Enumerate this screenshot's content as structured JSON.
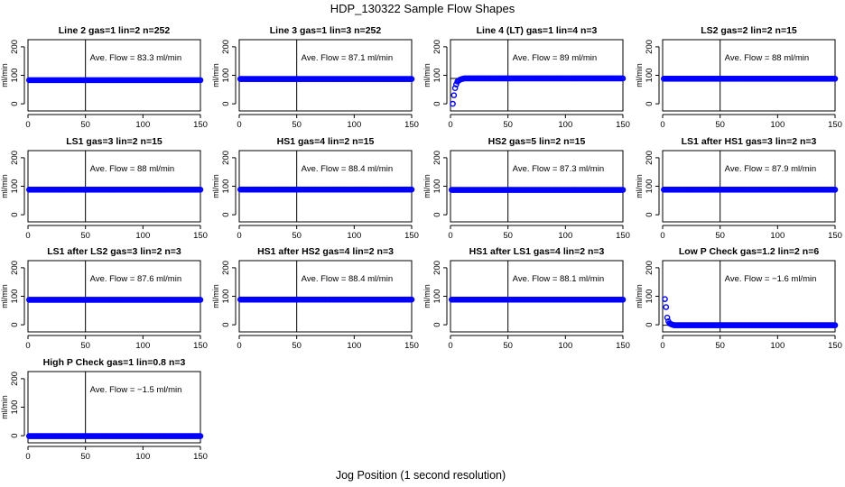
{
  "title": "HDP_130322  Sample Flow Shapes",
  "xlabel": "Jog Position (1 second resolution)",
  "ylabel": "ml/min",
  "colors": {
    "points": "#0000ff",
    "axes": "#000000",
    "background": "#ffffff"
  },
  "chart_data": [
    {
      "type": "scatter",
      "title": "Line 2 gas=1 lin=2 n=252",
      "annotation": "Ave. Flow =  83.3  ml/min",
      "xlim": [
        0,
        150
      ],
      "ylim": [
        -25,
        225
      ],
      "xticks": [
        0,
        50,
        100,
        150
      ],
      "yticks": [
        0,
        100,
        200
      ],
      "hlines": [
        83
      ],
      "vlines": [
        50
      ],
      "points": [
        {
          "x": 1,
          "y": 83
        },
        {
          "x": 150,
          "y": 83
        }
      ]
    },
    {
      "type": "scatter",
      "title": "Line 3 gas=1 lin=3 n=252",
      "annotation": "Ave. Flow =  87.1  ml/min",
      "xlim": [
        0,
        150
      ],
      "ylim": [
        -25,
        225
      ],
      "xticks": [
        0,
        50,
        100,
        150
      ],
      "yticks": [
        0,
        100,
        200
      ],
      "hlines": [
        87
      ],
      "vlines": [
        50
      ],
      "points": [
        {
          "x": 1,
          "y": 87
        },
        {
          "x": 150,
          "y": 87
        }
      ]
    },
    {
      "type": "scatter",
      "title": "Line 4 (LT) gas=1 lin=4 n=3",
      "annotation": "Ave. Flow =  89  ml/min",
      "xlim": [
        0,
        150
      ],
      "ylim": [
        -25,
        225
      ],
      "xticks": [
        0,
        50,
        100,
        150
      ],
      "yticks": [
        0,
        100,
        200
      ],
      "hlines": [
        89
      ],
      "vlines": [
        50
      ],
      "points": [
        {
          "x": 2,
          "y": 0
        },
        {
          "x": 3,
          "y": 30
        },
        {
          "x": 4,
          "y": 55
        },
        {
          "x": 5,
          "y": 68
        },
        {
          "x": 6,
          "y": 78
        },
        {
          "x": 8,
          "y": 84
        },
        {
          "x": 10,
          "y": 87
        },
        {
          "x": 12,
          "y": 89
        },
        {
          "x": 150,
          "y": 89
        }
      ]
    },
    {
      "type": "scatter",
      "title": "LS2 gas=2 lin=2 n=15",
      "annotation": "Ave. Flow =  88  ml/min",
      "xlim": [
        0,
        150
      ],
      "ylim": [
        -25,
        225
      ],
      "xticks": [
        0,
        50,
        100,
        150
      ],
      "yticks": [
        0,
        100,
        200
      ],
      "hlines": [
        88
      ],
      "vlines": [
        50
      ],
      "points": [
        {
          "x": 1,
          "y": 88
        },
        {
          "x": 150,
          "y": 88
        }
      ]
    },
    {
      "type": "scatter",
      "title": "LS1 gas=3 lin=2 n=15",
      "annotation": "Ave. Flow =  88  ml/min",
      "xlim": [
        0,
        150
      ],
      "ylim": [
        -25,
        225
      ],
      "xticks": [
        0,
        50,
        100,
        150
      ],
      "yticks": [
        0,
        100,
        200
      ],
      "hlines": [
        88
      ],
      "vlines": [
        50
      ],
      "points": [
        {
          "x": 1,
          "y": 88
        },
        {
          "x": 150,
          "y": 88
        }
      ]
    },
    {
      "type": "scatter",
      "title": "HS1 gas=4 lin=2 n=15",
      "annotation": "Ave. Flow =  88.4  ml/min",
      "xlim": [
        0,
        150
      ],
      "ylim": [
        -25,
        225
      ],
      "xticks": [
        0,
        50,
        100,
        150
      ],
      "yticks": [
        0,
        100,
        200
      ],
      "hlines": [
        88.4
      ],
      "vlines": [
        50
      ],
      "points": [
        {
          "x": 1,
          "y": 88.4
        },
        {
          "x": 150,
          "y": 88.4
        }
      ]
    },
    {
      "type": "scatter",
      "title": "HS2 gas=5 lin=2 n=15",
      "annotation": "Ave. Flow =  87.3  ml/min",
      "xlim": [
        0,
        150
      ],
      "ylim": [
        -25,
        225
      ],
      "xticks": [
        0,
        50,
        100,
        150
      ],
      "yticks": [
        0,
        100,
        200
      ],
      "hlines": [
        87.3
      ],
      "vlines": [
        50
      ],
      "points": [
        {
          "x": 1,
          "y": 87.3
        },
        {
          "x": 150,
          "y": 87.3
        }
      ]
    },
    {
      "type": "scatter",
      "title": "LS1 after HS1 gas=3 lin=2 n=3",
      "annotation": "Ave. Flow =  87.9  ml/min",
      "xlim": [
        0,
        150
      ],
      "ylim": [
        -25,
        225
      ],
      "xticks": [
        0,
        50,
        100,
        150
      ],
      "yticks": [
        0,
        100,
        200
      ],
      "hlines": [
        87.9
      ],
      "vlines": [
        50
      ],
      "points": [
        {
          "x": 1,
          "y": 87.9
        },
        {
          "x": 150,
          "y": 87.9
        }
      ]
    },
    {
      "type": "scatter",
      "title": "LS1 after LS2 gas=3 lin=2 n=3",
      "annotation": "Ave. Flow =  87.6  ml/min",
      "xlim": [
        0,
        150
      ],
      "ylim": [
        -25,
        225
      ],
      "xticks": [
        0,
        50,
        100,
        150
      ],
      "yticks": [
        0,
        100,
        200
      ],
      "hlines": [
        87.6
      ],
      "vlines": [
        50
      ],
      "points": [
        {
          "x": 1,
          "y": 87.6
        },
        {
          "x": 150,
          "y": 87.6
        }
      ]
    },
    {
      "type": "scatter",
      "title": "HS1 after HS2 gas=4 lin=2 n=3",
      "annotation": "Ave. Flow =  88.4  ml/min",
      "xlim": [
        0,
        150
      ],
      "ylim": [
        -25,
        225
      ],
      "xticks": [
        0,
        50,
        100,
        150
      ],
      "yticks": [
        0,
        100,
        200
      ],
      "hlines": [
        88.4
      ],
      "vlines": [
        50
      ],
      "points": [
        {
          "x": 1,
          "y": 88.4
        },
        {
          "x": 150,
          "y": 88.4
        }
      ]
    },
    {
      "type": "scatter",
      "title": "HS1 after LS1 gas=4 lin=2 n=3",
      "annotation": "Ave. Flow =  88.1  ml/min",
      "xlim": [
        0,
        150
      ],
      "ylim": [
        -25,
        225
      ],
      "xticks": [
        0,
        50,
        100,
        150
      ],
      "yticks": [
        0,
        100,
        200
      ],
      "hlines": [
        88.1
      ],
      "vlines": [
        50
      ],
      "points": [
        {
          "x": 1,
          "y": 88.1
        },
        {
          "x": 150,
          "y": 88.1
        }
      ]
    },
    {
      "type": "scatter",
      "title": "Low P Check gas=1.2 lin=2 n=6",
      "annotation": "Ave. Flow =  −1.6  ml/min",
      "xlim": [
        0,
        150
      ],
      "ylim": [
        -25,
        225
      ],
      "xticks": [
        0,
        50,
        100,
        150
      ],
      "yticks": [
        0,
        100,
        200
      ],
      "hlines": [
        -1.6
      ],
      "vlines": [
        50
      ],
      "points": [
        {
          "x": 2,
          "y": 90
        },
        {
          "x": 3,
          "y": 62
        },
        {
          "x": 4,
          "y": 25
        },
        {
          "x": 5,
          "y": 12
        },
        {
          "x": 6,
          "y": 5
        },
        {
          "x": 8,
          "y": 1
        },
        {
          "x": 10,
          "y": -1.6
        },
        {
          "x": 150,
          "y": -1.6
        }
      ]
    },
    {
      "type": "scatter",
      "title": "High P Check gas=1 lin=0.8 n=3",
      "annotation": "Ave. Flow =  −1.5  ml/min",
      "xlim": [
        0,
        150
      ],
      "ylim": [
        -25,
        225
      ],
      "xticks": [
        0,
        50,
        100,
        150
      ],
      "yticks": [
        0,
        100,
        200
      ],
      "hlines": [
        -1.5
      ],
      "vlines": [
        50
      ],
      "points": [
        {
          "x": 1,
          "y": -1.5
        },
        {
          "x": 150,
          "y": -1.5
        }
      ]
    }
  ]
}
